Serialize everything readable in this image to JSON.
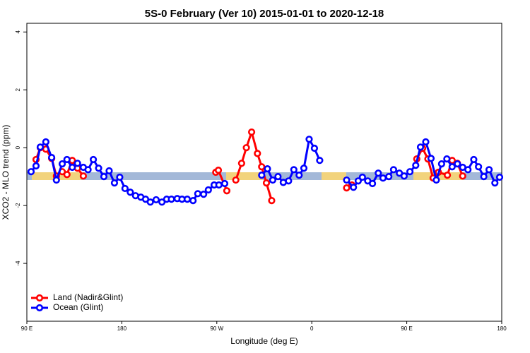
{
  "chart_data": {
    "type": "line",
    "title": "5S-0 February (Ver 10)   2015-01-01 to 2020-12-18",
    "x_label": "Longitude (deg E)",
    "y_label": "XCO2 - MLO trend (ppm)",
    "xlim": [
      90,
      540
    ],
    "ylim": [
      -6,
      4.3
    ],
    "xticks": [
      {
        "value": 90,
        "label": "90 E"
      },
      180,
      {
        "value": 270,
        "label": "90 W"
      },
      {
        "value": 360,
        "label": "0"
      },
      {
        "value": 450,
        "label": "90 E"
      },
      {
        "value": 540,
        "label": "180"
      }
    ],
    "yticks": [
      -4,
      -2,
      0,
      2,
      4
    ],
    "legend": "bottomleft",
    "series": [
      {
        "name": "Land (Nadir&Glint)",
        "color": "#ff0000",
        "x": [
          98.7,
          102.7,
          108,
          113.5,
          118,
          123.5,
          128,
          133,
          138,
          143.5,
          null,
          269,
          271.5,
          279.5,
          null,
          288,
          293.5,
          298,
          303,
          308.5,
          312.5,
          317,
          322,
          null,
          393,
          398,
          null,
          459.5,
          465,
          470,
          475,
          480,
          488.5,
          493,
          498,
          503
        ],
        "values": [
          -0.41,
          0.0,
          -0.05,
          -0.37,
          -0.98,
          -0.83,
          -0.93,
          -0.44,
          -0.71,
          -0.98,
          null,
          -0.85,
          -0.78,
          -1.49,
          null,
          -1.12,
          -0.54,
          0.0,
          0.54,
          -0.2,
          -0.66,
          -1.22,
          -1.83,
          null,
          -1.39,
          -1.29,
          null,
          -0.39,
          -0.02,
          -0.39,
          -1.05,
          -0.85,
          -0.95,
          -0.44,
          -0.54,
          -0.98
        ]
      },
      {
        "name": "Ocean (Glint)",
        "color": "#0000ff",
        "x": [
          94,
          98.7,
          102.7,
          108,
          113.5,
          118,
          123.5,
          128,
          133,
          138,
          143.5,
          148,
          153,
          158,
          163,
          168,
          173,
          178,
          183,
          188,
          193,
          198,
          202.5,
          207,
          212.5,
          218,
          222.5,
          227,
          232.5,
          237,
          242,
          247.5,
          252,
          257.5,
          262,
          267.5,
          272,
          277.5,
          null,
          312.5,
          318,
          323,
          328,
          333,
          338,
          343,
          348,
          352.5,
          357.5,
          362.5,
          367.5,
          null,
          393,
          399.5,
          404,
          408,
          413,
          417.5,
          423,
          427.5,
          433,
          437.5,
          443,
          447.5,
          453,
          458.5,
          463,
          468,
          473,
          478,
          483,
          488,
          493,
          498,
          503,
          508,
          513.5,
          518,
          523,
          528,
          533.5,
          538
        ],
        "values": [
          -0.83,
          -0.63,
          0.02,
          0.2,
          -0.34,
          -1.12,
          -0.56,
          -0.41,
          -0.68,
          -0.54,
          -0.68,
          -0.76,
          -0.41,
          -0.71,
          -1.0,
          -0.8,
          -1.22,
          -1.02,
          -1.41,
          -1.54,
          -1.66,
          -1.71,
          -1.78,
          -1.88,
          -1.8,
          -1.88,
          -1.78,
          -1.78,
          -1.76,
          -1.78,
          -1.78,
          -1.83,
          -1.59,
          -1.61,
          -1.46,
          -1.29,
          -1.29,
          -1.24,
          null,
          -0.95,
          -0.73,
          -1.12,
          -1.0,
          -1.2,
          -1.15,
          -0.76,
          -0.95,
          -0.71,
          0.29,
          -0.02,
          -0.44,
          null,
          -1.12,
          -1.37,
          -1.15,
          -1.02,
          -1.15,
          -1.24,
          -0.88,
          -1.05,
          -1.0,
          -0.76,
          -0.88,
          -0.98,
          -0.83,
          -0.61,
          0.02,
          0.2,
          -0.37,
          -1.12,
          -0.56,
          -0.39,
          -0.66,
          -0.56,
          -0.68,
          -0.76,
          -0.41,
          -0.66,
          -1.0,
          -0.76,
          -1.22,
          -1.02
        ]
      }
    ]
  }
}
